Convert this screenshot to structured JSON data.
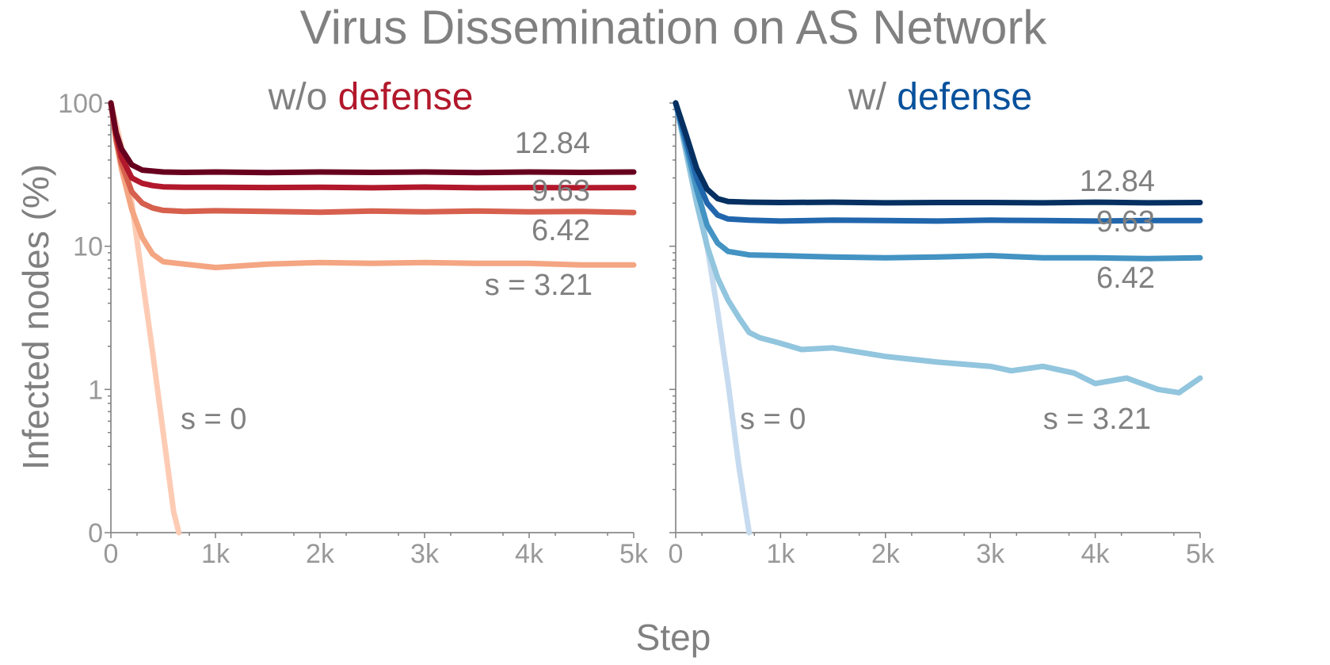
{
  "title": "Virus Dissemination on AS Network",
  "xlabel": "Step",
  "ylabel": "Infected nodes (%)",
  "chart_data": [
    {
      "type": "line",
      "title_parts": [
        {
          "text": "w/o ",
          "color": "#808080"
        },
        {
          "text": "defense",
          "color": "#b2182b"
        }
      ],
      "x_scale": "linear",
      "y_scale": "log",
      "xlim": [
        0,
        5000
      ],
      "ylim": [
        0.1,
        100
      ],
      "x_ticks": [
        {
          "value": 0,
          "label": "0"
        },
        {
          "value": 1000,
          "label": "1k"
        },
        {
          "value": 2000,
          "label": "2k"
        },
        {
          "value": 3000,
          "label": "3k"
        },
        {
          "value": 4000,
          "label": "4k"
        },
        {
          "value": 5000,
          "label": "5k"
        }
      ],
      "y_ticks": [
        {
          "value": 0.1,
          "label": "0"
        },
        {
          "value": 1,
          "label": "1"
        },
        {
          "value": 10,
          "label": "10"
        },
        {
          "value": 100,
          "label": "100"
        }
      ],
      "grid": false,
      "series": [
        {
          "label": "s = 0",
          "color": "#fdcbb4",
          "x": [
            0,
            100,
            200,
            300,
            400,
            500,
            600,
            650
          ],
          "y": [
            100,
            50,
            20,
            6,
            1.8,
            0.5,
            0.14,
            0.1
          ]
        },
        {
          "label": "s = 3.21",
          "color": "#f4a582",
          "x": [
            0,
            50,
            100,
            200,
            300,
            400,
            500,
            700,
            1000,
            1500,
            2000,
            2500,
            3000,
            3500,
            4000,
            4500,
            5000
          ],
          "y": [
            100,
            55,
            35,
            18,
            11.5,
            8.8,
            7.8,
            7.5,
            7.1,
            7.5,
            7.7,
            7.6,
            7.7,
            7.6,
            7.6,
            7.4,
            7.4
          ]
        },
        {
          "label": "6.42",
          "color": "#d6604d",
          "x": [
            0,
            50,
            100,
            200,
            300,
            400,
            500,
            700,
            1000,
            1500,
            2000,
            2500,
            3000,
            3500,
            4000,
            4500,
            5000
          ],
          "y": [
            100,
            55,
            38,
            24,
            20,
            18.5,
            17.8,
            17.5,
            17.7,
            17.5,
            17.3,
            17.6,
            17.4,
            17.6,
            17.4,
            17.5,
            17.2
          ]
        },
        {
          "label": "9.63",
          "color": "#b2182b",
          "x": [
            0,
            50,
            100,
            200,
            300,
            400,
            500,
            700,
            1000,
            1500,
            2000,
            2500,
            3000,
            3500,
            4000,
            4500,
            5000
          ],
          "y": [
            100,
            60,
            42,
            30,
            27.5,
            26.5,
            26,
            25.8,
            25.8,
            25.7,
            25.8,
            25.6,
            25.9,
            25.6,
            25.7,
            25.6,
            25.7
          ]
        },
        {
          "label": "12.84",
          "color": "#67001f",
          "x": [
            0,
            50,
            100,
            200,
            300,
            400,
            500,
            700,
            1000,
            1500,
            2000,
            2500,
            3000,
            3500,
            4000,
            4500,
            5000
          ],
          "y": [
            100,
            62,
            48,
            37,
            34,
            33.5,
            33,
            32.8,
            33,
            32.7,
            33,
            32.8,
            33,
            32.7,
            33,
            32.8,
            33
          ]
        }
      ]
    },
    {
      "type": "line",
      "title_parts": [
        {
          "text": "w/ ",
          "color": "#808080"
        },
        {
          "text": "defense",
          "color": "#08519c"
        }
      ],
      "x_scale": "linear",
      "y_scale": "log",
      "xlim": [
        0,
        5000
      ],
      "ylim": [
        0.1,
        100
      ],
      "x_ticks": [
        {
          "value": 0,
          "label": "0"
        },
        {
          "value": 1000,
          "label": "1k"
        },
        {
          "value": 2000,
          "label": "2k"
        },
        {
          "value": 3000,
          "label": "3k"
        },
        {
          "value": 4000,
          "label": "4k"
        },
        {
          "value": 5000,
          "label": "5k"
        }
      ],
      "grid": false,
      "series": [
        {
          "label": "s = 0",
          "color": "#c6dbef",
          "x": [
            0,
            100,
            200,
            300,
            400,
            500,
            600,
            700
          ],
          "y": [
            100,
            55,
            25,
            10,
            3.5,
            1.1,
            0.3,
            0.1
          ]
        },
        {
          "label": "s = 3.21",
          "color": "#92c5de",
          "x": [
            0,
            100,
            200,
            300,
            400,
            500,
            600,
            700,
            800,
            1000,
            1200,
            1500,
            2000,
            2500,
            3000,
            3200,
            3500,
            3800,
            4000,
            4300,
            4600,
            4800,
            5000
          ],
          "y": [
            100,
            45,
            20,
            10,
            6,
            4.2,
            3.2,
            2.5,
            2.3,
            2.1,
            1.9,
            1.95,
            1.7,
            1.55,
            1.45,
            1.35,
            1.45,
            1.3,
            1.1,
            1.2,
            1.0,
            0.95,
            1.2
          ]
        },
        {
          "label": "6.42",
          "color": "#4393c3",
          "x": [
            0,
            100,
            200,
            300,
            400,
            500,
            700,
            1000,
            1500,
            2000,
            2500,
            3000,
            3500,
            4000,
            4500,
            5000
          ],
          "y": [
            100,
            50,
            25,
            14,
            10.5,
            9.2,
            8.7,
            8.6,
            8.4,
            8.3,
            8.4,
            8.6,
            8.3,
            8.3,
            8.2,
            8.3
          ]
        },
        {
          "label": "9.63",
          "color": "#2166ac",
          "x": [
            0,
            100,
            200,
            300,
            400,
            500,
            700,
            1000,
            1500,
            2000,
            2500,
            3000,
            3500,
            4000,
            4500,
            5000
          ],
          "y": [
            100,
            55,
            30,
            20,
            16.5,
            15.5,
            15.2,
            15,
            15.2,
            15.1,
            15,
            15.2,
            15.1,
            15,
            15.1,
            15.1
          ]
        },
        {
          "label": "12.84",
          "color": "#053061",
          "x": [
            0,
            100,
            200,
            300,
            400,
            500,
            700,
            1000,
            1500,
            2000,
            2500,
            3000,
            3500,
            4000,
            4500,
            5000
          ],
          "y": [
            100,
            60,
            35,
            25,
            21.5,
            20.5,
            20.3,
            20.2,
            20.3,
            20.1,
            20.2,
            20.2,
            20.1,
            20.3,
            20.1,
            20.2
          ]
        }
      ]
    }
  ]
}
